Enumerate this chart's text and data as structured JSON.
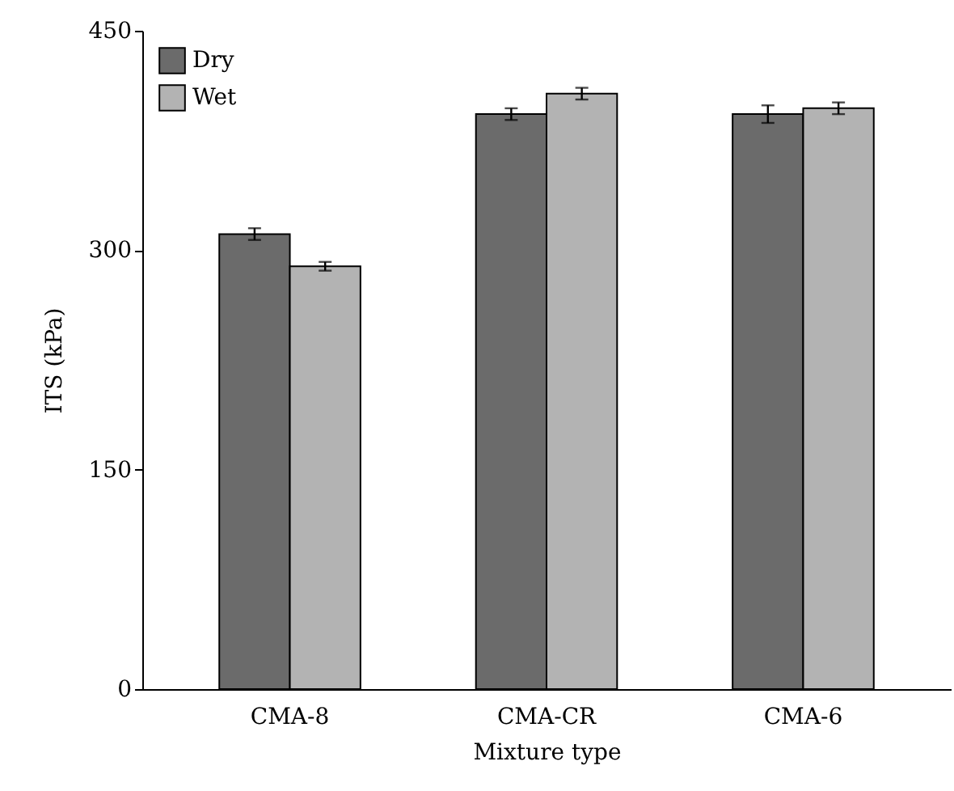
{
  "chart_data": {
    "type": "bar",
    "xlabel": "Mixture type",
    "ylabel": "ITS (kPa)",
    "categories": [
      "CMA-8",
      "CMA-CR",
      "CMA-6"
    ],
    "series": [
      {
        "name": "Dry",
        "color": "#6b6b6b",
        "values": [
          311,
          393,
          393
        ],
        "errors": [
          4,
          4,
          6
        ]
      },
      {
        "name": "Wet",
        "color": "#b3b3b3",
        "values": [
          289,
          407,
          397
        ],
        "errors": [
          3,
          4,
          4
        ]
      }
    ],
    "ylim": [
      0,
      450
    ],
    "yticks": [
      0,
      150,
      300,
      450
    ],
    "grid": false,
    "legend": "top left"
  }
}
